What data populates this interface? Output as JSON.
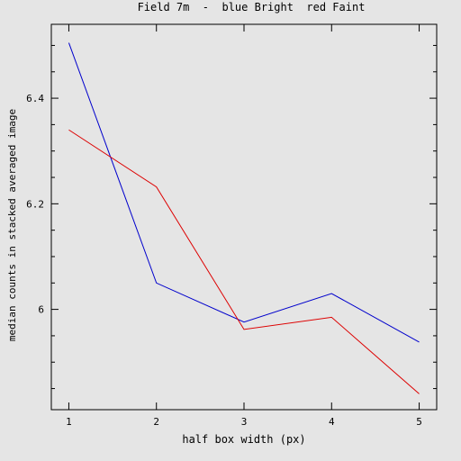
{
  "chart_data": {
    "type": "line",
    "title": "Field 7m  -  blue Bright  red Faint",
    "xlabel": "half box width (px)",
    "ylabel": "median counts in stacked averaged image",
    "x": [
      1,
      2,
      3,
      4,
      5
    ],
    "xlim": [
      0.8,
      5.2
    ],
    "ylim": [
      5.81,
      6.54
    ],
    "xticks": [
      1,
      2,
      3,
      4,
      5
    ],
    "yticks": [
      6,
      6.2,
      6.4
    ],
    "ytick_labels": [
      "6",
      "6.2",
      "6.4"
    ],
    "y_minor_ticks": [
      5.85,
      5.9,
      5.95,
      6.05,
      6.1,
      6.15,
      6.25,
      6.3,
      6.35,
      6.45,
      6.5
    ],
    "grid": false,
    "series": [
      {
        "color": "#0000cc",
        "values": [
          6.505,
          6.05,
          5.976,
          6.03,
          5.938
        ]
      },
      {
        "color": "#dd0000",
        "values": [
          6.34,
          6.232,
          5.962,
          5.985,
          5.84
        ]
      }
    ]
  }
}
